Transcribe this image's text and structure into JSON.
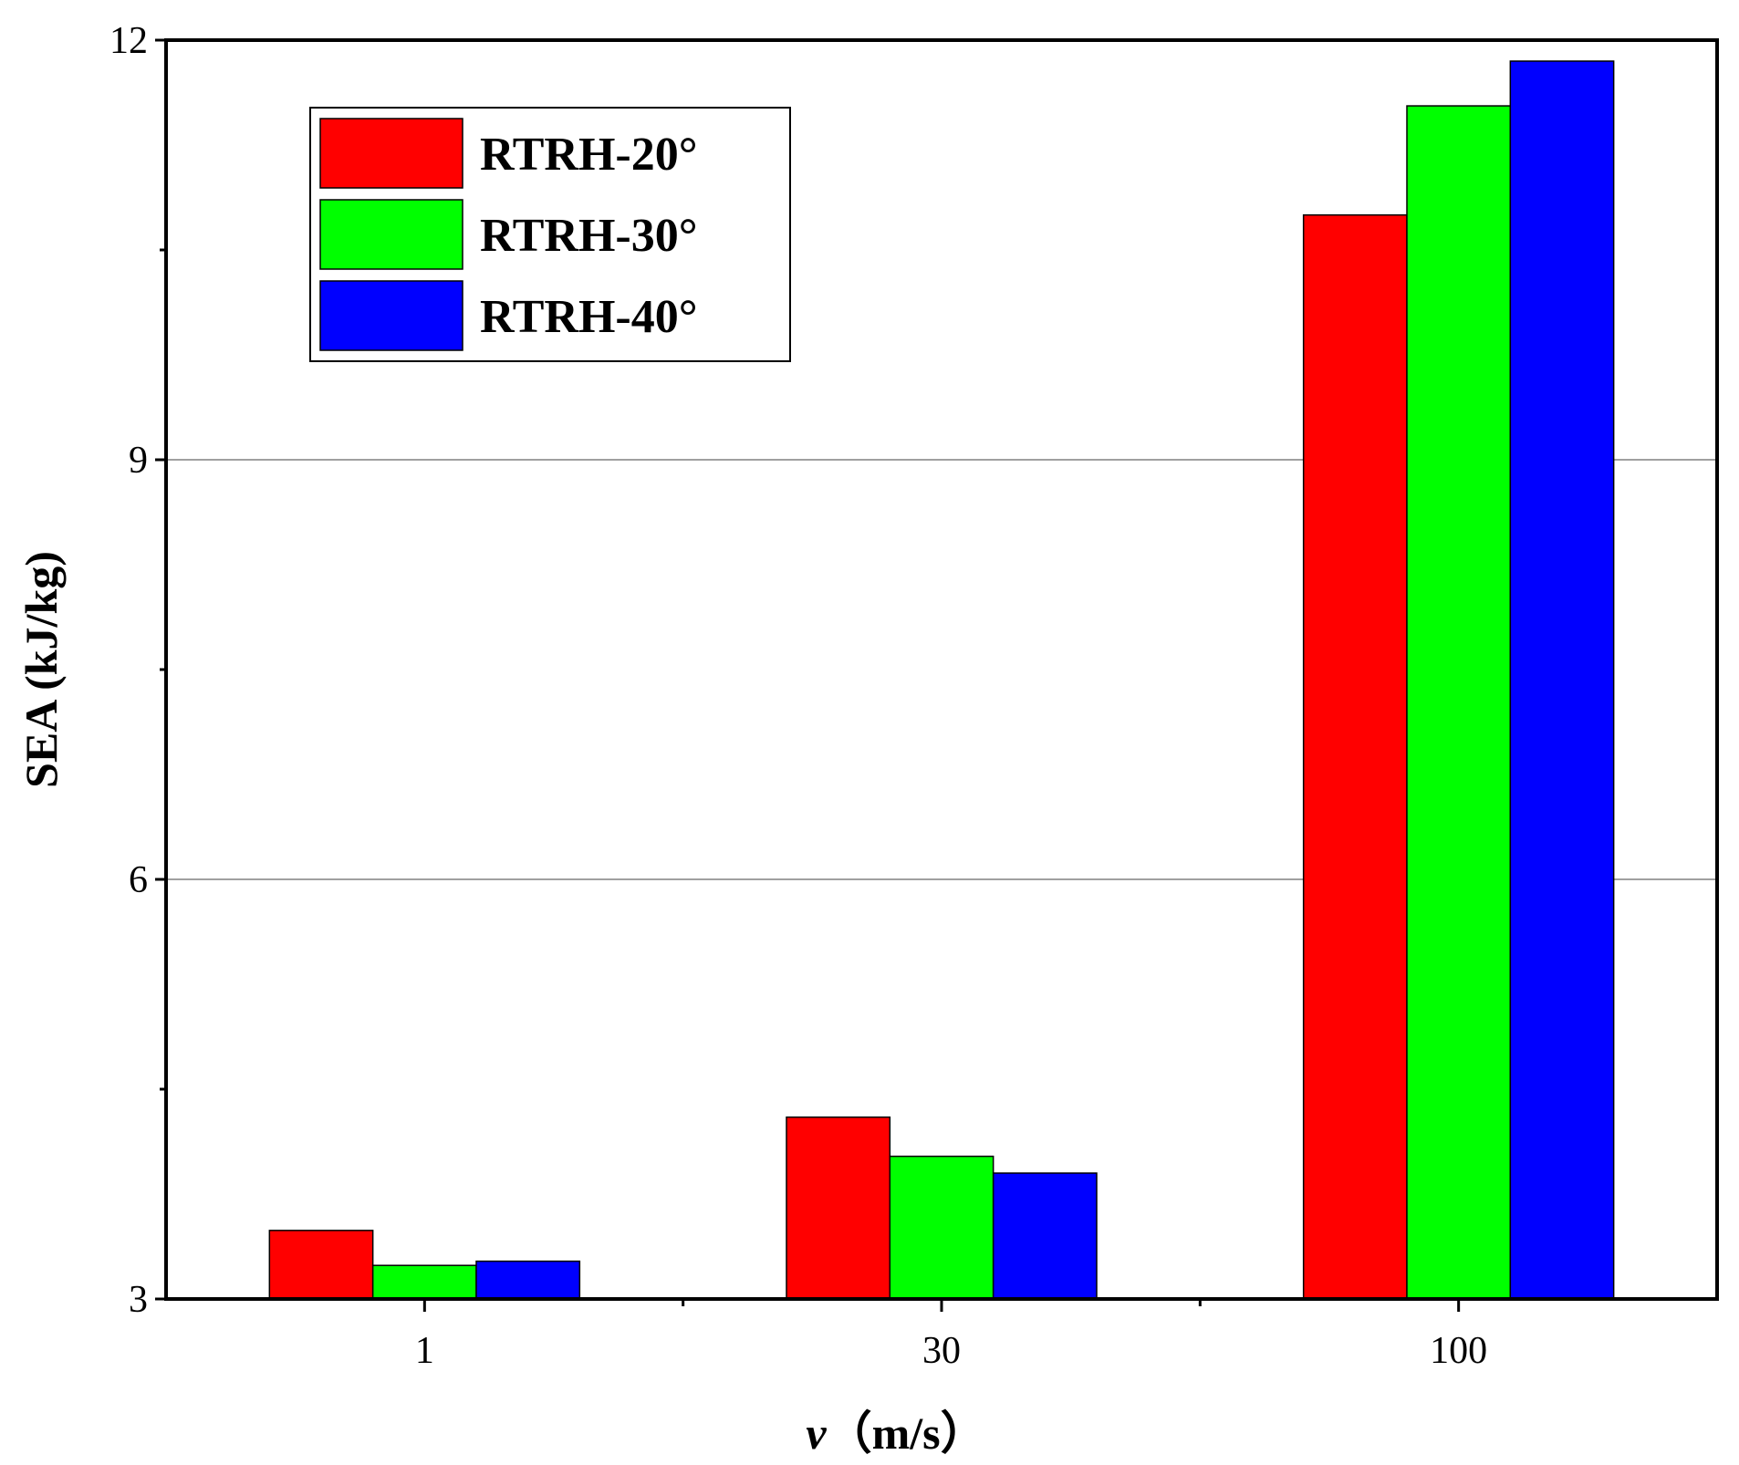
{
  "chart_data": {
    "type": "bar",
    "title": "",
    "xlabel_var": "v",
    "xlabel_unit": "（m/s）",
    "ylabel": "SEA (kJ/kg)",
    "categories": [
      "1",
      "30",
      "100"
    ],
    "series": [
      {
        "name": "RTRH-20°",
        "color": "#ff0000",
        "values": [
          3.49,
          4.3,
          10.75
        ]
      },
      {
        "name": "RTRH-30°",
        "color": "#00ff00",
        "values": [
          3.24,
          4.02,
          11.53
        ]
      },
      {
        "name": "RTRH-40°",
        "color": "#0000ff",
        "values": [
          3.27,
          3.9,
          11.85
        ]
      }
    ],
    "ylim": [
      3,
      12
    ],
    "yticks": [
      3,
      6,
      9,
      12
    ],
    "grid": true,
    "legend_position": "top-left"
  }
}
